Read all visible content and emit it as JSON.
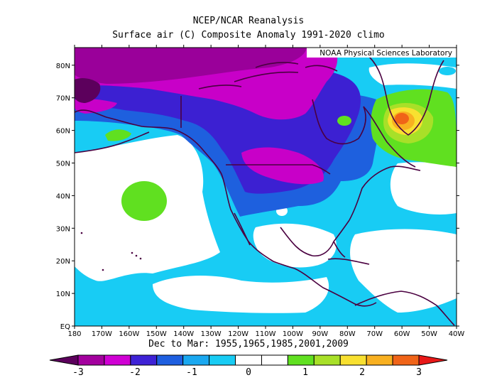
{
  "title_line1": "NCEP/NCAR Reanalysis",
  "title_line2": "Surface air (C) Composite Anomaly 1991-2020 climo",
  "credit": "NOAA Physical Sciences Laboratory",
  "subtitle": "Dec to Mar: 1955,1965,1985,2001,2009",
  "lat_labels": [
    "80N",
    "70N",
    "60N",
    "50N",
    "40N",
    "30N",
    "20N",
    "10N",
    "EQ"
  ],
  "lon_labels": [
    "180",
    "170W",
    "160W",
    "150W",
    "140W",
    "130W",
    "120W",
    "110W",
    "100W",
    "90W",
    "80W",
    "70W",
    "60W",
    "50W",
    "40W"
  ],
  "colorbar": {
    "colors": [
      "#5c005c",
      "#a3009e",
      "#d000d4",
      "#3e22d6",
      "#1e5fe0",
      "#1aa8f0",
      "#18ccf4",
      "#ffffff",
      "#ffffff",
      "#60e020",
      "#a8e028",
      "#f8e030",
      "#f8b020",
      "#f06418",
      "#e81818"
    ],
    "labels": [
      "-3",
      "-2",
      "-1",
      "0",
      "1",
      "2",
      "3"
    ]
  },
  "colors": {
    "deep_purple": "#5c005c",
    "purple": "#9a009a",
    "magenta": "#c800c8",
    "blue_violet": "#3c20d2",
    "blue": "#1e60de",
    "light_blue": "#18ccf4",
    "white": "#ffffff",
    "green": "#60e020",
    "yellow_green": "#a8e028",
    "yellow": "#f8e030",
    "orange": "#f8b020",
    "red_orange": "#f06418",
    "coast": "#4a0040"
  }
}
